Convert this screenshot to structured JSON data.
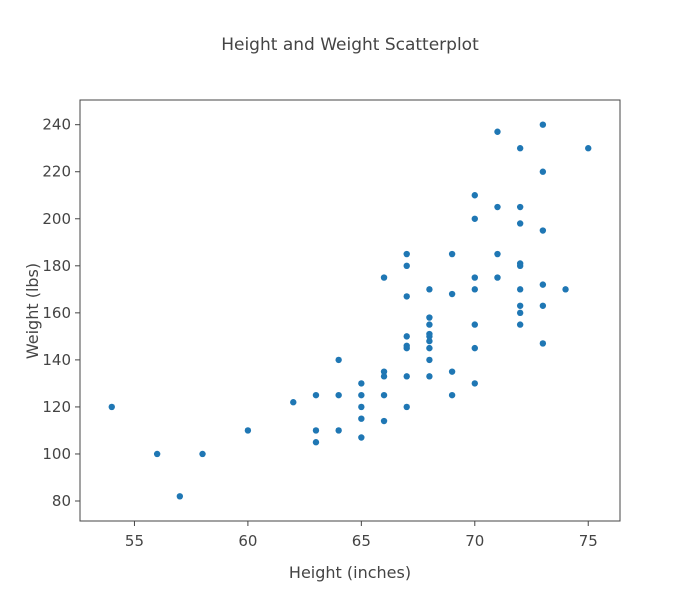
{
  "chart_data": {
    "type": "scatter",
    "title": "Height and Weight Scatterplot",
    "xlabel": "Height (inches)",
    "ylabel": "Weight (lbs)",
    "xlim": [
      52.6,
      76.4
    ],
    "ylim": [
      71.5,
      250.5
    ],
    "xticks": [
      55,
      60,
      65,
      70,
      75
    ],
    "yticks": [
      80,
      100,
      120,
      140,
      160,
      180,
      200,
      220,
      240
    ],
    "grid": false,
    "color": "#1f77b4",
    "points": [
      {
        "x": 54,
        "y": 120
      },
      {
        "x": 56,
        "y": 100
      },
      {
        "x": 57,
        "y": 82
      },
      {
        "x": 58,
        "y": 100
      },
      {
        "x": 60,
        "y": 110
      },
      {
        "x": 62,
        "y": 122
      },
      {
        "x": 63,
        "y": 125
      },
      {
        "x": 63,
        "y": 110
      },
      {
        "x": 63,
        "y": 105
      },
      {
        "x": 64,
        "y": 140
      },
      {
        "x": 64,
        "y": 125
      },
      {
        "x": 64,
        "y": 110
      },
      {
        "x": 65,
        "y": 130
      },
      {
        "x": 65,
        "y": 125
      },
      {
        "x": 65,
        "y": 120
      },
      {
        "x": 65,
        "y": 115
      },
      {
        "x": 65,
        "y": 107
      },
      {
        "x": 66,
        "y": 175
      },
      {
        "x": 66,
        "y": 135
      },
      {
        "x": 66,
        "y": 133
      },
      {
        "x": 66,
        "y": 125
      },
      {
        "x": 66,
        "y": 114
      },
      {
        "x": 67,
        "y": 185
      },
      {
        "x": 67,
        "y": 180
      },
      {
        "x": 67,
        "y": 167
      },
      {
        "x": 67,
        "y": 150
      },
      {
        "x": 67,
        "y": 146
      },
      {
        "x": 67,
        "y": 145
      },
      {
        "x": 67,
        "y": 133
      },
      {
        "x": 67,
        "y": 120
      },
      {
        "x": 68,
        "y": 170
      },
      {
        "x": 68,
        "y": 158
      },
      {
        "x": 68,
        "y": 155
      },
      {
        "x": 68,
        "y": 151
      },
      {
        "x": 68,
        "y": 150
      },
      {
        "x": 68,
        "y": 148
      },
      {
        "x": 68,
        "y": 145
      },
      {
        "x": 68,
        "y": 140
      },
      {
        "x": 68,
        "y": 133
      },
      {
        "x": 69,
        "y": 185
      },
      {
        "x": 69,
        "y": 168
      },
      {
        "x": 69,
        "y": 135
      },
      {
        "x": 69,
        "y": 125
      },
      {
        "x": 70,
        "y": 210
      },
      {
        "x": 70,
        "y": 200
      },
      {
        "x": 70,
        "y": 175
      },
      {
        "x": 70,
        "y": 170
      },
      {
        "x": 70,
        "y": 155
      },
      {
        "x": 70,
        "y": 145
      },
      {
        "x": 70,
        "y": 130
      },
      {
        "x": 71,
        "y": 237
      },
      {
        "x": 71,
        "y": 205
      },
      {
        "x": 71,
        "y": 185
      },
      {
        "x": 71,
        "y": 175
      },
      {
        "x": 72,
        "y": 230
      },
      {
        "x": 72,
        "y": 205
      },
      {
        "x": 72,
        "y": 198
      },
      {
        "x": 72,
        "y": 181
      },
      {
        "x": 72,
        "y": 180
      },
      {
        "x": 72,
        "y": 170
      },
      {
        "x": 72,
        "y": 163
      },
      {
        "x": 72,
        "y": 160
      },
      {
        "x": 72,
        "y": 155
      },
      {
        "x": 73,
        "y": 240
      },
      {
        "x": 73,
        "y": 220
      },
      {
        "x": 73,
        "y": 195
      },
      {
        "x": 73,
        "y": 172
      },
      {
        "x": 73,
        "y": 163
      },
      {
        "x": 73,
        "y": 147
      },
      {
        "x": 74,
        "y": 170
      },
      {
        "x": 75,
        "y": 230
      }
    ]
  }
}
